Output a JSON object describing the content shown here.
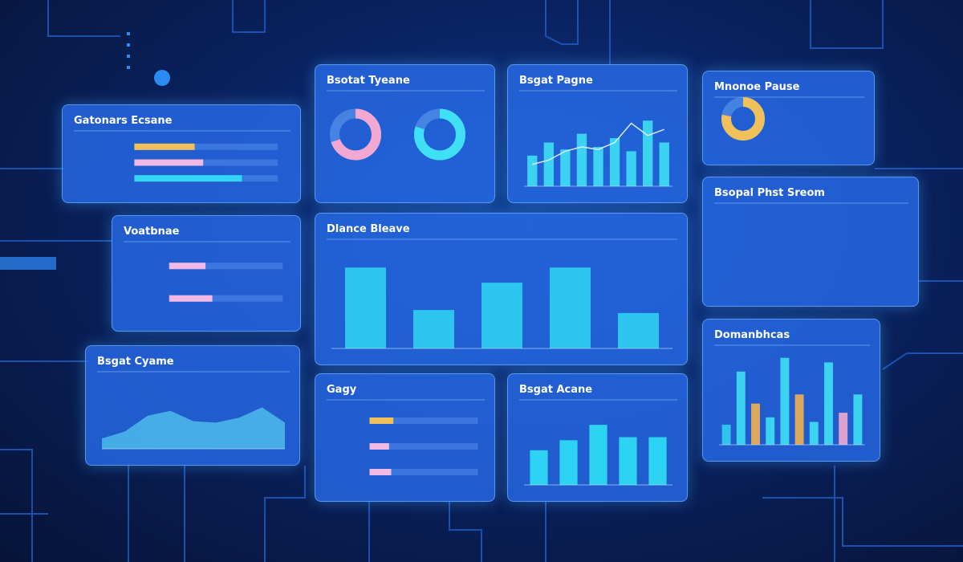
{
  "panels": [
    {
      "title": "Gatonars Ecsane",
      "chart": {
        "type": "hbar",
        "values": [
          42,
          48,
          75
        ],
        "colors": [
          "#f0c05a",
          "#f2b8e6",
          "#33d6f5"
        ],
        "ylim": [
          0,
          100
        ]
      }
    },
    {
      "title": "Bsotat Tyeane",
      "chart": {
        "type": "rings",
        "values": [
          70,
          80
        ],
        "colors": [
          "#f2a8d0",
          "#3fe0f5"
        ],
        "ylim": [
          0,
          100
        ]
      }
    },
    {
      "title": "Bsgat Pagne",
      "chart": {
        "type": "bar",
        "values": [
          35,
          50,
          42,
          60,
          45,
          55,
          40,
          75,
          50
        ],
        "line": [
          25,
          30,
          40,
          45,
          42,
          50,
          72,
          58,
          65
        ],
        "colors": [
          "#3fe0f5"
        ],
        "ylim": [
          0,
          100
        ]
      }
    },
    {
      "title": "Mnonoe Pause",
      "chart": {
        "type": "rings",
        "values": [
          78
        ],
        "colors": [
          "#f0c05a"
        ],
        "ylim": [
          0,
          100
        ]
      }
    },
    {
      "title": "Voatbnae",
      "chart": {
        "type": "hbar",
        "values": [
          32,
          38
        ],
        "colors": [
          "#f2b8e6",
          "#f2b8e6"
        ],
        "ylim": [
          0,
          100
        ]
      }
    },
    {
      "title": "Dlance Bleave",
      "chart": {
        "type": "bar",
        "values": [
          80,
          38,
          65,
          80,
          35
        ],
        "colors": [
          "#2fd0f0"
        ],
        "ylim": [
          0,
          100
        ]
      }
    },
    {
      "title": "Bsopal Phst Sreom",
      "chart": {
        "type": "none"
      }
    },
    {
      "title": "Bsgat Cyame",
      "chart": {
        "type": "area",
        "values": [
          15,
          25,
          48,
          55,
          40,
          38,
          45,
          60,
          38
        ],
        "colors": [
          "#5fe3f7"
        ],
        "ylim": [
          0,
          100
        ]
      }
    },
    {
      "title": "Gagy",
      "chart": {
        "type": "hbar",
        "values": [
          22,
          18,
          20
        ],
        "colors": [
          "#f0c05a",
          "#f2b8e6",
          "#f2b8e6"
        ],
        "ylim": [
          0,
          100
        ]
      }
    },
    {
      "title": "Bsgat Acane",
      "chart": {
        "type": "bar",
        "values": [
          45,
          58,
          78,
          62,
          62
        ],
        "colors": [
          "#2fe0f5"
        ],
        "ylim": [
          0,
          100
        ]
      }
    },
    {
      "title": "Domanbhcas",
      "chart": {
        "type": "bar",
        "values": [
          22,
          80,
          45,
          30,
          95,
          55,
          25,
          90,
          35,
          55
        ],
        "colors": [
          "#2fd0f0",
          "#3fe0f5",
          "#f0b050",
          "#3fe0f5",
          "#3fe0f5",
          "#f0b050",
          "#3fe0f5",
          "#3fe0f5",
          "#f2a8d0",
          "#3fe0f5"
        ],
        "ylim": [
          0,
          100
        ]
      }
    }
  ]
}
